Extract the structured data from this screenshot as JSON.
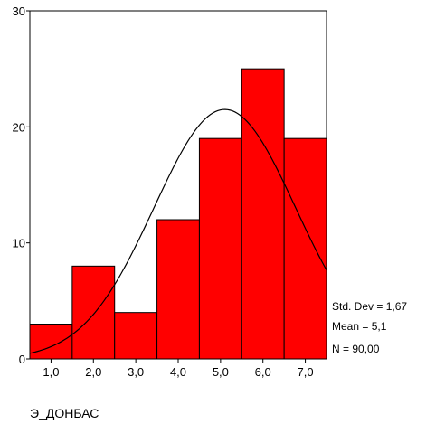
{
  "chart_data": {
    "type": "bar",
    "subtype": "histogram",
    "categories": [
      "1,0",
      "2,0",
      "3,0",
      "4,0",
      "5,0",
      "6,0",
      "7,0"
    ],
    "values": [
      3,
      8,
      4,
      12,
      19,
      25,
      19
    ],
    "bar_color": "#ff0000",
    "bar_edge_color": "#000000",
    "curve": {
      "type": "normal",
      "mean": 5.1,
      "std_dev": 1.67,
      "n": 90,
      "bin_width": 1
    },
    "ylim": [
      0,
      30
    ],
    "yticks": [
      "0",
      "10",
      "20",
      "30"
    ],
    "xlabel": "Э_ДОНБАС",
    "ylabel": "",
    "title": "",
    "grid": false,
    "stats": [
      "Std. Dev = 1,67",
      "Mean = 5,1",
      "N = 90,00"
    ]
  }
}
